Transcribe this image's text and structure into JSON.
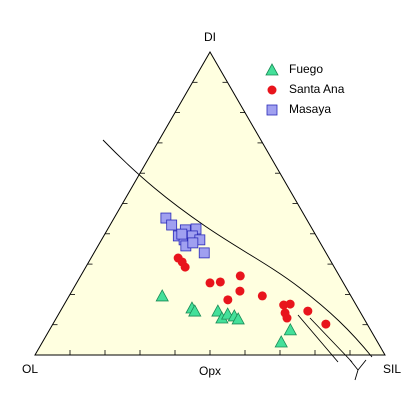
{
  "chart_data": {
    "type": "ternary",
    "apices": {
      "top": "DI",
      "left": "OL",
      "right": "SIL"
    },
    "edge_label": "Opx",
    "series": [
      {
        "name": "Fuego",
        "color": "#44e09a",
        "marker": "triangle",
        "di": [
          0.195,
          0.155,
          0.145,
          0.145,
          0.122,
          0.135,
          0.129,
          0.119,
          0.083,
          0.043
        ],
        "sil": [
          0.266,
          0.371,
          0.384,
          0.45,
          0.473,
          0.483,
          0.505,
          0.521,
          0.688,
          0.682
        ]
      },
      {
        "name": "Santa Ana",
        "color": "#e8141c",
        "marker": "circle",
        "di": [
          0.32,
          0.307,
          0.29,
          0.261,
          0.241,
          0.238,
          0.211,
          0.182,
          0.195,
          0.165,
          0.168,
          0.139,
          0.122,
          0.145,
          0.102
        ],
        "sil": [
          0.249,
          0.267,
          0.284,
          0.456,
          0.409,
          0.381,
          0.48,
          0.46,
          0.552,
          0.628,
          0.645,
          0.645,
          0.659,
          0.707,
          0.78
        ]
      },
      {
        "name": "Masaya",
        "color": "#a0a0f0",
        "marker": "square",
        "di": [
          0.452,
          0.429,
          0.413,
          0.416,
          0.393,
          0.38,
          0.393,
          0.38,
          0.36,
          0.37,
          0.337,
          0.399
        ],
        "sil": [
          0.148,
          0.176,
          0.223,
          0.252,
          0.213,
          0.236,
          0.253,
          0.281,
          0.251,
          0.266,
          0.315,
          0.22
        ]
      }
    ]
  }
}
